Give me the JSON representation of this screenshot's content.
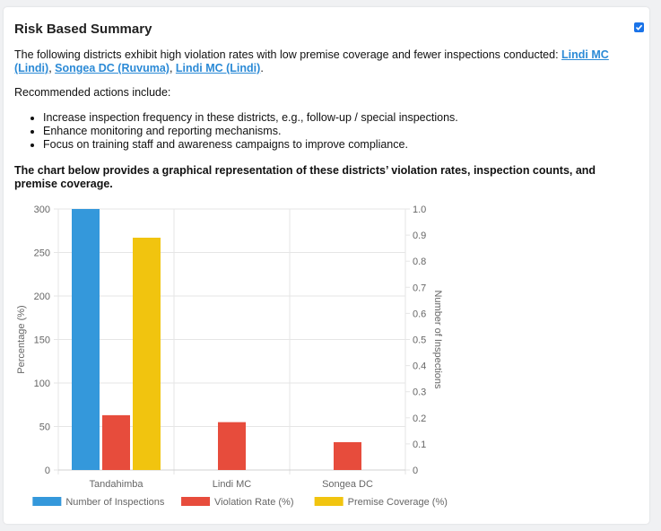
{
  "header": {
    "title": "Risk Based Summary",
    "checkbox_checked": true
  },
  "summary": {
    "intro": "The following districts exhibit high violation rates with low premise coverage and fewer inspections conducted:",
    "links": [
      "Lindi MC (Lindi)",
      "Songea DC (Ruvuma)",
      "Lindi MC (Lindi)"
    ],
    "actions_intro": "Recommended actions include:",
    "actions": [
      "Increase inspection frequency in these districts, e.g., follow-up / special inspections.",
      "Enhance monitoring and reporting mechanisms.",
      "Focus on training staff and awareness campaigns to improve compliance."
    ],
    "chart_intro": "The chart below provides a graphical representation of these districts’ violation rates, inspection counts, and premise coverage."
  },
  "chart_data": {
    "type": "bar",
    "categories": [
      "Tandahimba",
      "Lindi MC",
      "Songea DC"
    ],
    "series": [
      {
        "name": "Number of Inspections",
        "color": "#3498db",
        "values": [
          300,
          0,
          0
        ]
      },
      {
        "name": "Violation Rate (%)",
        "color": "#e74c3c",
        "values": [
          63,
          55,
          32
        ]
      },
      {
        "name": "Premise Coverage (%)",
        "color": "#f1c40f",
        "values": [
          267,
          0,
          0
        ]
      }
    ],
    "ylabel": "Percentage (%)",
    "y2label": "Number of Inspections",
    "ylim": [
      0,
      300
    ],
    "yticks": [
      "0",
      "50",
      "100",
      "150",
      "200",
      "250",
      "300"
    ],
    "y2lim": [
      0,
      1
    ],
    "y2ticks": [
      "0",
      "0.1",
      "0.2",
      "0.3",
      "0.4",
      "0.5",
      "0.6",
      "0.7",
      "0.8",
      "0.9",
      "1.0"
    ],
    "grid": true,
    "legend": "bottom"
  }
}
